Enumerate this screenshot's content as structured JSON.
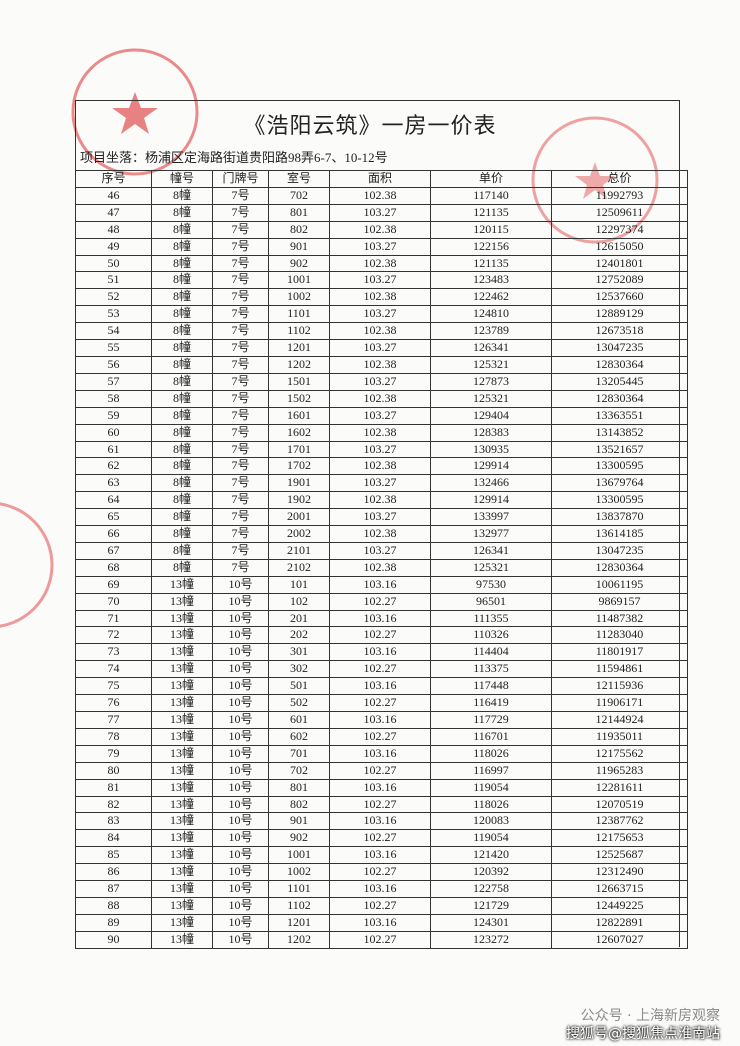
{
  "title": "《浩阳云筑》一房一价表",
  "project": "项目坐落：杨浦区定海路街道贵阳路98弄6-7、10-12号",
  "table": {
    "header": [
      "序号",
      "幢号",
      "门牌号",
      "室号",
      "面积",
      "单价",
      "总价"
    ],
    "rows": [
      [
        "46",
        "8幢",
        "7号",
        "702",
        "102.38",
        "117140",
        "11992793"
      ],
      [
        "47",
        "8幢",
        "7号",
        "801",
        "103.27",
        "121135",
        "12509611"
      ],
      [
        "48",
        "8幢",
        "7号",
        "802",
        "102.38",
        "120115",
        "12297374"
      ],
      [
        "49",
        "8幢",
        "7号",
        "901",
        "103.27",
        "122156",
        "12615050"
      ],
      [
        "50",
        "8幢",
        "7号",
        "902",
        "102.38",
        "121135",
        "12401801"
      ],
      [
        "51",
        "8幢",
        "7号",
        "1001",
        "103.27",
        "123483",
        "12752089"
      ],
      [
        "52",
        "8幢",
        "7号",
        "1002",
        "102.38",
        "122462",
        "12537660"
      ],
      [
        "53",
        "8幢",
        "7号",
        "1101",
        "103.27",
        "124810",
        "12889129"
      ],
      [
        "54",
        "8幢",
        "7号",
        "1102",
        "102.38",
        "123789",
        "12673518"
      ],
      [
        "55",
        "8幢",
        "7号",
        "1201",
        "103.27",
        "126341",
        "13047235"
      ],
      [
        "56",
        "8幢",
        "7号",
        "1202",
        "102.38",
        "125321",
        "12830364"
      ],
      [
        "57",
        "8幢",
        "7号",
        "1501",
        "103.27",
        "127873",
        "13205445"
      ],
      [
        "58",
        "8幢",
        "7号",
        "1502",
        "102.38",
        "125321",
        "12830364"
      ],
      [
        "59",
        "8幢",
        "7号",
        "1601",
        "103.27",
        "129404",
        "13363551"
      ],
      [
        "60",
        "8幢",
        "7号",
        "1602",
        "102.38",
        "128383",
        "13143852"
      ],
      [
        "61",
        "8幢",
        "7号",
        "1701",
        "103.27",
        "130935",
        "13521657"
      ],
      [
        "62",
        "8幢",
        "7号",
        "1702",
        "102.38",
        "129914",
        "13300595"
      ],
      [
        "63",
        "8幢",
        "7号",
        "1901",
        "103.27",
        "132466",
        "13679764"
      ],
      [
        "64",
        "8幢",
        "7号",
        "1902",
        "102.38",
        "129914",
        "13300595"
      ],
      [
        "65",
        "8幢",
        "7号",
        "2001",
        "103.27",
        "133997",
        "13837870"
      ],
      [
        "66",
        "8幢",
        "7号",
        "2002",
        "102.38",
        "132977",
        "13614185"
      ],
      [
        "67",
        "8幢",
        "7号",
        "2101",
        "103.27",
        "126341",
        "13047235"
      ],
      [
        "68",
        "8幢",
        "7号",
        "2102",
        "102.38",
        "125321",
        "12830364"
      ],
      [
        "69",
        "13幢",
        "10号",
        "101",
        "103.16",
        "97530",
        "10061195"
      ],
      [
        "70",
        "13幢",
        "10号",
        "102",
        "102.27",
        "96501",
        "9869157"
      ],
      [
        "71",
        "13幢",
        "10号",
        "201",
        "103.16",
        "111355",
        "11487382"
      ],
      [
        "72",
        "13幢",
        "10号",
        "202",
        "102.27",
        "110326",
        "11283040"
      ],
      [
        "73",
        "13幢",
        "10号",
        "301",
        "103.16",
        "114404",
        "11801917"
      ],
      [
        "74",
        "13幢",
        "10号",
        "302",
        "102.27",
        "113375",
        "11594861"
      ],
      [
        "75",
        "13幢",
        "10号",
        "501",
        "103.16",
        "117448",
        "12115936"
      ],
      [
        "76",
        "13幢",
        "10号",
        "502",
        "102.27",
        "116419",
        "11906171"
      ],
      [
        "77",
        "13幢",
        "10号",
        "601",
        "103.16",
        "117729",
        "12144924"
      ],
      [
        "78",
        "13幢",
        "10号",
        "602",
        "102.27",
        "116701",
        "11935011"
      ],
      [
        "79",
        "13幢",
        "10号",
        "701",
        "103.16",
        "118026",
        "12175562"
      ],
      [
        "80",
        "13幢",
        "10号",
        "702",
        "102.27",
        "116997",
        "11965283"
      ],
      [
        "81",
        "13幢",
        "10号",
        "801",
        "103.16",
        "119054",
        "12281611"
      ],
      [
        "82",
        "13幢",
        "10号",
        "802",
        "102.27",
        "118026",
        "12070519"
      ],
      [
        "83",
        "13幢",
        "10号",
        "901",
        "103.16",
        "120083",
        "12387762"
      ],
      [
        "84",
        "13幢",
        "10号",
        "902",
        "102.27",
        "119054",
        "12175653"
      ],
      [
        "85",
        "13幢",
        "10号",
        "1001",
        "103.16",
        "121420",
        "12525687"
      ],
      [
        "86",
        "13幢",
        "10号",
        "1002",
        "102.27",
        "120392",
        "12312490"
      ],
      [
        "87",
        "13幢",
        "10号",
        "1101",
        "103.16",
        "122758",
        "12663715"
      ],
      [
        "88",
        "13幢",
        "10号",
        "1102",
        "102.27",
        "121729",
        "12449225"
      ],
      [
        "89",
        "13幢",
        "10号",
        "1201",
        "103.16",
        "124301",
        "12822891"
      ],
      [
        "90",
        "13幢",
        "10号",
        "1202",
        "102.27",
        "123272",
        "12607027"
      ]
    ]
  },
  "watermark": {
    "line1": "公众号 · 上海新房观察",
    "line2": "搜狐号@搜狐焦点淮南站"
  }
}
